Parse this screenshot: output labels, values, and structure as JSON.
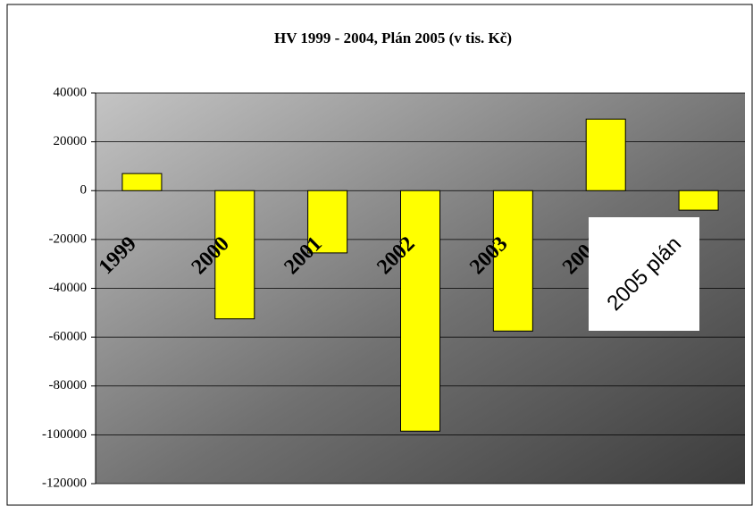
{
  "chart_data": {
    "type": "bar",
    "title": "HV 1999 - 2004, Plán 2005 (v tis. Kč)",
    "categories": [
      "1999",
      "2000",
      "2001",
      "2002",
      "2003",
      "2004",
      "2005 plán"
    ],
    "values": [
      7000,
      -52500,
      -25500,
      -98500,
      -57500,
      29300,
      -8000
    ],
    "color": "#ffff00",
    "ylim": [
      -120000,
      40000
    ],
    "yticks": [
      -120000,
      -100000,
      -80000,
      -60000,
      -40000,
      -20000,
      0,
      20000,
      40000
    ],
    "grid": true
  }
}
